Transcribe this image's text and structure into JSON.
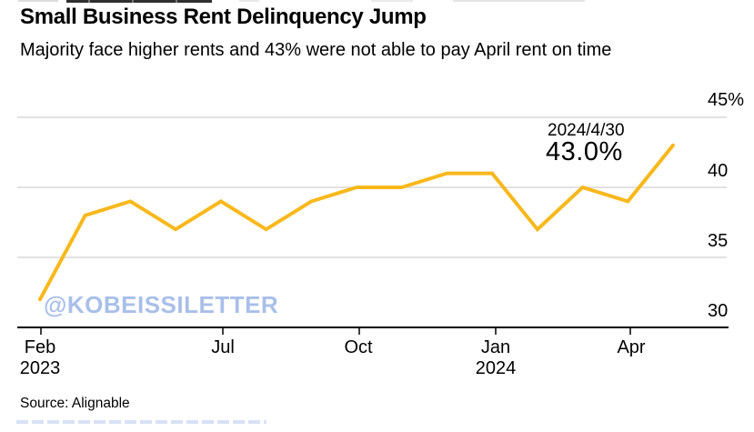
{
  "header": {
    "title": "Small Business Rent Delinquency Jump",
    "subtitle": "Majority face higher rents and 43% were not able to pay April rent on time"
  },
  "annotation": {
    "date": "2024/4/30",
    "value": "43.0%"
  },
  "watermark": "@KOBEISSILETTER",
  "source": "Source: Alignable",
  "chart_data": {
    "type": "line",
    "title": "Small Business Rent Delinquency Jump",
    "subtitle": "Majority face higher rents and 43% were not able to pay April rent on time",
    "x": [
      "Feb 2023",
      "Mar 2023",
      "Apr 2023",
      "May 2023",
      "Jun 2023",
      "Jul 2023",
      "Aug 2023",
      "Sep 2023",
      "Oct 2023",
      "Nov 2023",
      "Dec 2023",
      "Jan 2024",
      "Feb 2024",
      "Mar 2024",
      "Apr 2024"
    ],
    "values": [
      32,
      38,
      39,
      37,
      39,
      37,
      39,
      40,
      40,
      41,
      41,
      37,
      40,
      39,
      43
    ],
    "ylim": [
      30,
      45
    ],
    "yticks": [
      30,
      35,
      40,
      45
    ],
    "ytick_labels": [
      "30",
      "35",
      "40",
      "45%"
    ],
    "xticks": [
      {
        "label": "Feb",
        "sub": "2023"
      },
      {
        "label": "Jul",
        "sub": ""
      },
      {
        "label": "Oct",
        "sub": ""
      },
      {
        "label": "Jan",
        "sub": "2024"
      },
      {
        "label": "Apr",
        "sub": ""
      }
    ],
    "grid": true,
    "legend_position": "none",
    "line_color": "#F8B81C",
    "grid_color": "#D9D9D9",
    "axis_color": "#000000",
    "watermark_color": "#A9BFEA",
    "annotation": {
      "label": "2024/4/30",
      "value": "43.0%",
      "point": "Apr 2024"
    }
  }
}
